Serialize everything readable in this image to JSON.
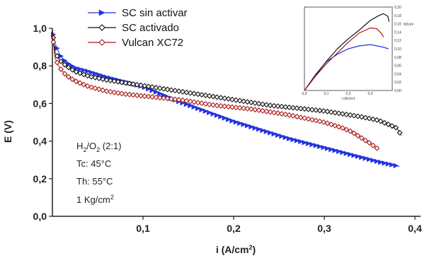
{
  "chart_data": {
    "type": "line",
    "xlabel": "i (A/cm²)",
    "ylabel": "E (V)",
    "xlim": [
      0,
      0.4
    ],
    "ylim": [
      0,
      1.05
    ],
    "xticks": [
      "0,1",
      "0,2",
      "0,3",
      "0,4"
    ],
    "yticks": [
      "0,0",
      "0,2",
      "0,4",
      "0,6",
      "0,8",
      "1,0"
    ],
    "legend_placement": "top",
    "series": [
      {
        "name": "SC sin activar",
        "color": "#2233dd",
        "marker": "triangle-right",
        "x": [
          0.0,
          0.003,
          0.008,
          0.015,
          0.025,
          0.04,
          0.06,
          0.08,
          0.1,
          0.12,
          0.14,
          0.16,
          0.18,
          0.2,
          0.22,
          0.24,
          0.26,
          0.28,
          0.3,
          0.32,
          0.34,
          0.36,
          0.383
        ],
        "y": [
          0.99,
          0.92,
          0.86,
          0.82,
          0.79,
          0.77,
          0.74,
          0.715,
          0.69,
          0.65,
          0.61,
          0.575,
          0.54,
          0.505,
          0.475,
          0.445,
          0.415,
          0.39,
          0.365,
          0.34,
          0.315,
          0.29,
          0.265
        ]
      },
      {
        "name": "SC activado",
        "color": "#111111",
        "marker": "diamond",
        "x": [
          0.0,
          0.003,
          0.008,
          0.015,
          0.025,
          0.04,
          0.06,
          0.08,
          0.1,
          0.12,
          0.14,
          0.16,
          0.18,
          0.2,
          0.22,
          0.24,
          0.26,
          0.28,
          0.3,
          0.32,
          0.34,
          0.36,
          0.37,
          0.38,
          0.385
        ],
        "y": [
          0.99,
          0.87,
          0.83,
          0.8,
          0.77,
          0.745,
          0.725,
          0.71,
          0.695,
          0.68,
          0.665,
          0.65,
          0.635,
          0.62,
          0.605,
          0.59,
          0.58,
          0.57,
          0.56,
          0.545,
          0.53,
          0.51,
          0.49,
          0.47,
          0.43
        ]
      },
      {
        "name": "Vulcan XC72",
        "color": "#aa1818",
        "marker": "diamond",
        "x": [
          0.0,
          0.003,
          0.008,
          0.015,
          0.025,
          0.04,
          0.06,
          0.08,
          0.1,
          0.12,
          0.14,
          0.16,
          0.18,
          0.2,
          0.22,
          0.24,
          0.26,
          0.28,
          0.3,
          0.32,
          0.33,
          0.34,
          0.35,
          0.36
        ],
        "y": [
          0.97,
          0.84,
          0.79,
          0.75,
          0.72,
          0.69,
          0.665,
          0.65,
          0.64,
          0.63,
          0.62,
          0.605,
          0.59,
          0.58,
          0.57,
          0.555,
          0.54,
          0.52,
          0.5,
          0.47,
          0.45,
          0.42,
          0.39,
          0.355
        ]
      }
    ],
    "annotations": [
      "H2/O2 (2:1)",
      "Tc: 45°C",
      "Th: 55°C",
      "1 Kg/cm2"
    ],
    "inset": {
      "type": "line",
      "description_axes": "power density vs current",
      "xticks": [
        "0,0",
        "0,1",
        "0,2",
        "0,3"
      ],
      "yticks": [
        "0,00",
        "0,02",
        "0,04",
        "0,06",
        "0,08",
        "0,10",
        "0,12",
        "0,14",
        "0,16",
        "0,18",
        "0,20"
      ],
      "ylabel": "W/cm²",
      "xlabel": "i (A/cm²)",
      "xlim": [
        0,
        0.4
      ],
      "ylim": [
        0,
        0.2
      ],
      "series": [
        {
          "color": "#2233dd",
          "x": [
            0.0,
            0.05,
            0.1,
            0.15,
            0.2,
            0.25,
            0.3,
            0.35,
            0.383
          ],
          "y": [
            0.0,
            0.038,
            0.069,
            0.087,
            0.1,
            0.107,
            0.11,
            0.105,
            0.1
          ]
        },
        {
          "color": "#111111",
          "x": [
            0.0,
            0.05,
            0.1,
            0.15,
            0.2,
            0.25,
            0.3,
            0.34,
            0.36,
            0.38,
            0.385
          ],
          "y": [
            0.0,
            0.036,
            0.07,
            0.1,
            0.124,
            0.145,
            0.168,
            0.18,
            0.184,
            0.178,
            0.165
          ]
        },
        {
          "color": "#aa1818",
          "x": [
            0.0,
            0.05,
            0.1,
            0.15,
            0.2,
            0.25,
            0.3,
            0.33,
            0.35,
            0.36
          ],
          "y": [
            0.0,
            0.034,
            0.064,
            0.09,
            0.116,
            0.138,
            0.15,
            0.148,
            0.137,
            0.128
          ]
        }
      ]
    }
  }
}
